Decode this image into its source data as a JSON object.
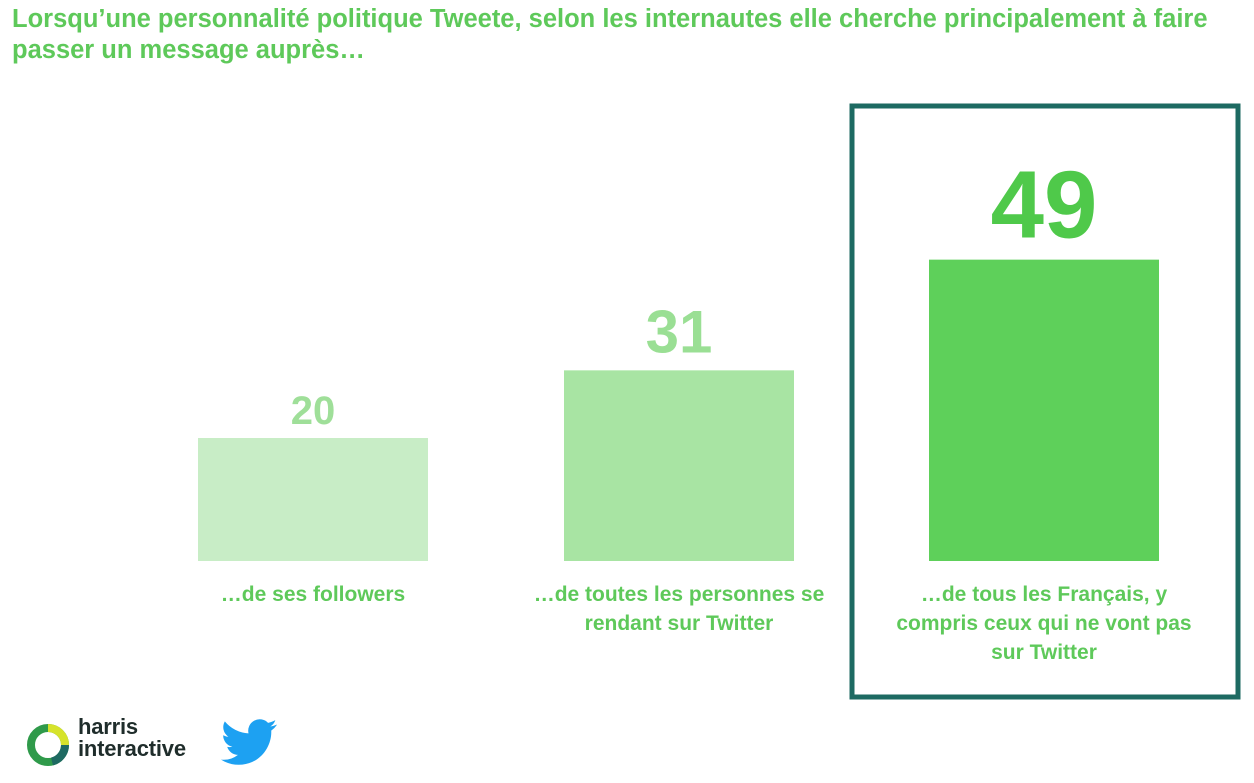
{
  "title": "Lorsqu’une personnalité politique Tweete, selon les internautes elle cherche principalement à faire passer un message auprès…",
  "chart_data": {
    "type": "bar",
    "categories": [
      "…de ses followers",
      "…de toutes les personnes se rendant sur Twitter",
      "…de tous les Français, y compris ceux qui ne vont pas sur Twitter"
    ],
    "values": [
      20,
      31,
      49
    ],
    "data_labels": [
      "20",
      "31",
      "49"
    ],
    "ylim": [
      0,
      60
    ],
    "grid": false,
    "highlighted_category": "…de tous les Français, y compris ceux qui ne vont pas sur Twitter",
    "colors": {
      "bar_1": "#c8edc6",
      "bar_2": "#a8e4a3",
      "bar_3": "#5ed05a",
      "label_1": "#9fdf99",
      "label_2": "#9adf94",
      "label_3": "#4fc94a",
      "highlight_border": "#1d6a62"
    }
  },
  "logos": {
    "harris_line1": "harris",
    "harris_line2": "interactive",
    "twitter_icon": "twitter-bird-icon",
    "harris_icon": "harris-ring-icon"
  }
}
